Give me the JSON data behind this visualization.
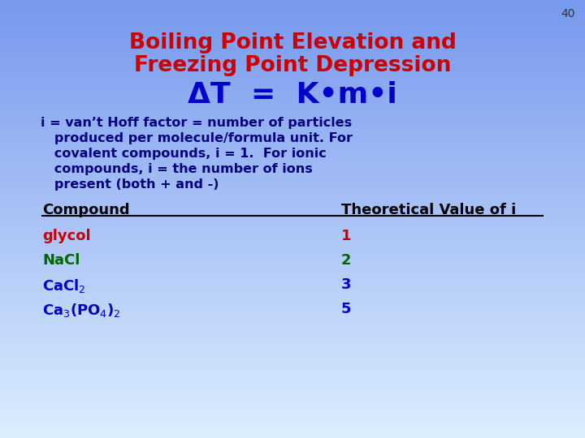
{
  "slide_number": "40",
  "bg_top": "#7799ee",
  "bg_bottom": "#ddeeff",
  "title_line1": "Boiling Point Elevation and",
  "title_line2": "Freezing Point Depression",
  "formula": "ΔT  =  K•m•i",
  "title_color": "#cc0000",
  "formula_color": "#0000cc",
  "body_color": "#000080",
  "body_lines": [
    "i = van’t Hoff factor = number of particles",
    "   produced per molecule/formula unit. For",
    "   covalent compounds, i = 1.  For ionic",
    "   compounds, i = the number of ions",
    "   present (both + and -)"
  ],
  "col_header_left": "Compound",
  "col_header_right": "Theoretical Value of i",
  "header_color": "#000000",
  "compounds": [
    "glycol",
    "NaCl",
    "CaCl$_2$",
    "Ca$_3$(PO$_4$)$_2$"
  ],
  "compound_colors": [
    "#cc0000",
    "#006600",
    "#0000cc",
    "#0000cc"
  ],
  "values": [
    "1",
    "2",
    "3",
    "5"
  ],
  "value_colors": [
    "#cc0000",
    "#006600",
    "#0000cc",
    "#0000cc"
  ],
  "slide_num_color": "#333333",
  "title_fontsize": 19,
  "formula_fontsize": 26,
  "body_fontsize": 11.5,
  "table_fontsize": 13,
  "slide_num_fontsize": 10
}
